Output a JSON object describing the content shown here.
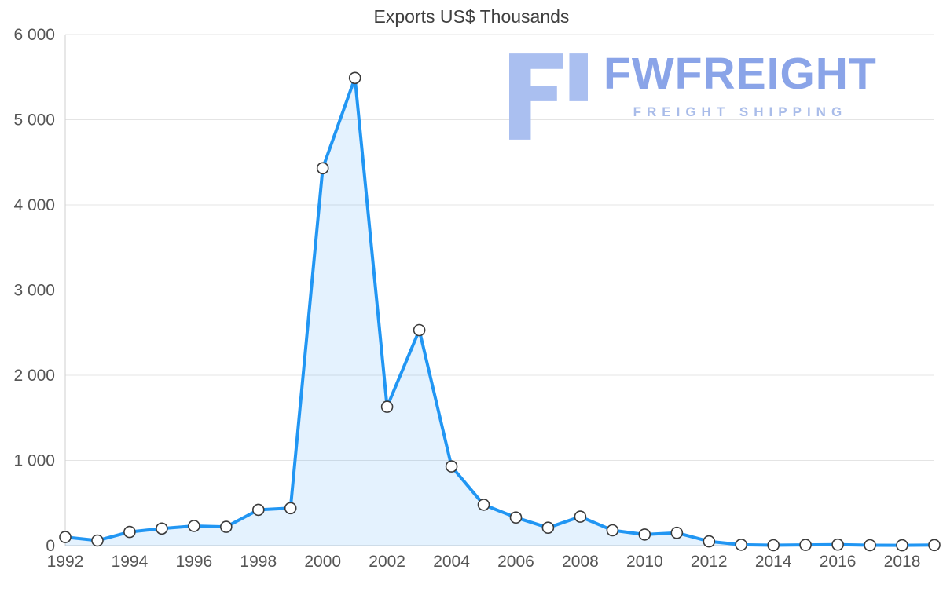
{
  "title": "Exports US$ Thousands",
  "logo": {
    "brand": "FWFREIGHT",
    "tagline": "FREIGHT SHIPPING",
    "mark_color": "#aabff0",
    "brand_color": "#8aa4e8",
    "tagline_color": "#a9bce9"
  },
  "colors": {
    "line": "#2196f3",
    "area": "rgba(33,150,243,0.12)",
    "marker_fill": "#ffffff",
    "marker_stroke": "#3a3a3a",
    "grid": "#e4e4e4",
    "axis": "#cfcfcf",
    "tick_text": "#555555"
  },
  "chart_data": {
    "type": "area",
    "title": "Exports US$ Thousands",
    "xlabel": "",
    "ylabel": "",
    "x": [
      1992,
      1993,
      1994,
      1995,
      1996,
      1997,
      1998,
      1999,
      2000,
      2001,
      2002,
      2003,
      2004,
      2005,
      2006,
      2007,
      2008,
      2009,
      2010,
      2011,
      2012,
      2013,
      2014,
      2015,
      2016,
      2017,
      2018,
      2019
    ],
    "values": [
      100,
      60,
      160,
      200,
      230,
      220,
      420,
      440,
      4430,
      5490,
      1630,
      2530,
      930,
      480,
      330,
      210,
      340,
      180,
      130,
      150,
      50,
      10,
      5,
      8,
      12,
      5,
      4,
      6
    ],
    "ylim": [
      0,
      6000
    ],
    "yticks": [
      0,
      1000,
      2000,
      3000,
      4000,
      5000,
      6000
    ],
    "ytick_labels": [
      "0",
      "1 000",
      "2 000",
      "3 000",
      "4 000",
      "5 000",
      "6 000"
    ],
    "xticks": [
      1992,
      1994,
      1996,
      1998,
      2000,
      2002,
      2004,
      2006,
      2008,
      2010,
      2012,
      2014,
      2016,
      2018
    ],
    "grid": "horizontal",
    "legend": "none",
    "marker": "circle-open"
  }
}
